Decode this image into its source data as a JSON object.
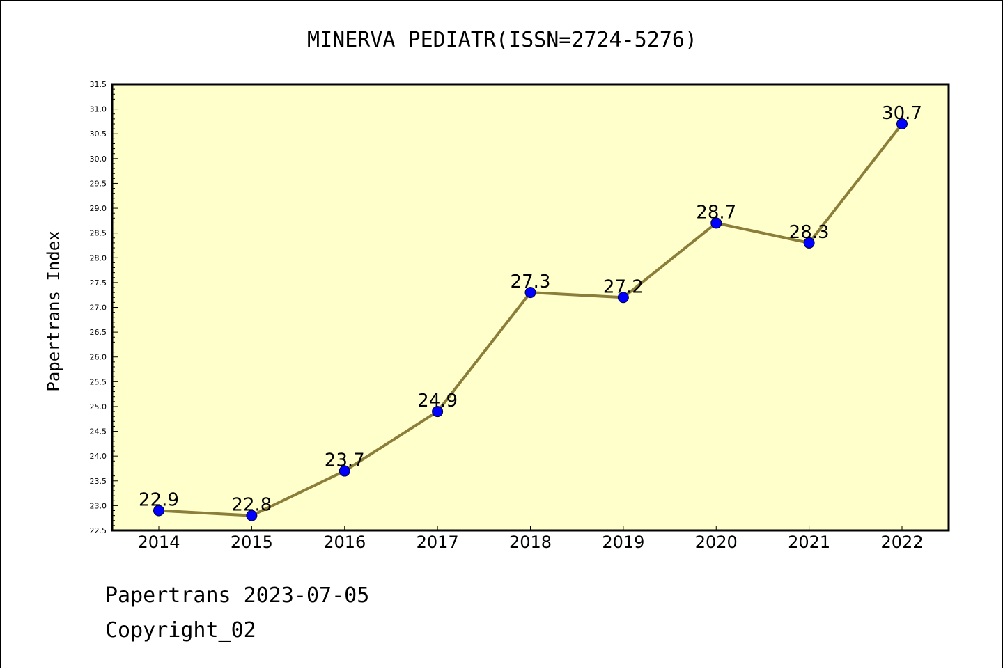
{
  "chart_data": {
    "type": "line",
    "title": "MINERVA PEDIATR(ISSN=2724-5276)",
    "ylabel": "Papertrans Index",
    "xlabel": "",
    "categories": [
      "2014",
      "2015",
      "2016",
      "2017",
      "2018",
      "2019",
      "2020",
      "2021",
      "2022"
    ],
    "values": [
      22.9,
      22.8,
      23.7,
      24.9,
      27.3,
      27.2,
      28.7,
      28.3,
      30.7
    ],
    "data_labels": [
      "22.9",
      "22.8",
      "23.7",
      "24.9",
      "27.3",
      "27.2",
      "28.7",
      "28.3",
      "30.7"
    ],
    "ylim": [
      22.5,
      31.5
    ],
    "yticks": [
      "22.5",
      "23.0",
      "23.5",
      "24.0",
      "24.5",
      "25.0",
      "25.5",
      "26.0",
      "26.5",
      "27.0",
      "27.5",
      "28.0",
      "28.5",
      "29.0",
      "29.5",
      "30.0",
      "30.5",
      "31.0",
      "31.5"
    ],
    "grid": false,
    "legend": "none",
    "colors": {
      "plot_background": "#ffffcc",
      "line": "#8b7d3a",
      "marker": "#0000ff"
    }
  },
  "footer": {
    "line1": "Papertrans 2023-07-05",
    "line2": "Copyright_02"
  }
}
